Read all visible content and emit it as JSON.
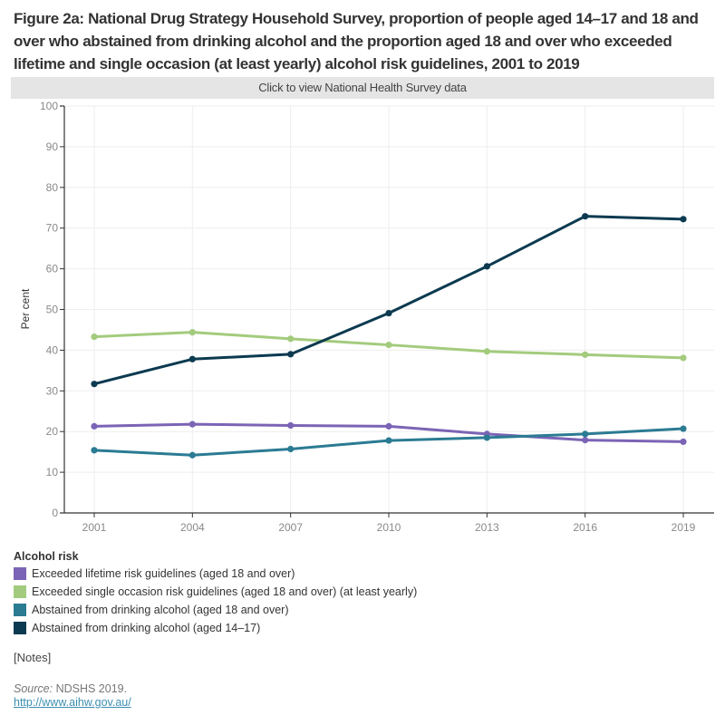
{
  "header": {
    "title": "Figure 2a: National Drug Strategy Household Survey, proportion of people aged 14–17 and 18 and over who abstained from drinking alcohol and the proportion aged 18 and over who exceeded lifetime and single occasion (at least yearly) alcohol risk guidelines, 2001 to 2019",
    "nhs_button_label": "Click to view National Health Survey data"
  },
  "chart_data": {
    "type": "line",
    "title": "",
    "xlabel": "",
    "ylabel": "Per cent",
    "x": [
      "2001",
      "2004",
      "2007",
      "2010",
      "2013",
      "2016",
      "2019"
    ],
    "ylim": [
      0,
      100
    ],
    "yticks": [
      "0",
      "10",
      "20",
      "30",
      "40",
      "50",
      "60",
      "70",
      "80",
      "90",
      "100"
    ],
    "grid": true,
    "legend_position": "bottom-left",
    "legend_title": "Alcohol risk",
    "series": [
      {
        "name": "Exceeded lifetime risk guidelines (aged 18 and over)",
        "color": "#7b64b5",
        "values": [
          21.3,
          21.8,
          21.5,
          21.3,
          19.4,
          17.9,
          17.5
        ]
      },
      {
        "name": "Exceeded single occasion risk guidelines (aged 18 and over) (at least yearly)",
        "color": "#a3cb7d",
        "values": [
          43.3,
          44.4,
          42.8,
          41.3,
          39.7,
          38.9,
          38.1
        ]
      },
      {
        "name": "Abstained from drinking alcohol (aged 18 and over)",
        "color": "#2b7b93",
        "values": [
          15.4,
          14.2,
          15.7,
          17.8,
          18.5,
          19.4,
          20.7
        ]
      },
      {
        "name": "Abstained from drinking alcohol (aged 14–17)",
        "color": "#0c3a50",
        "values": [
          31.7,
          37.8,
          39.0,
          49.1,
          60.6,
          72.9,
          72.2
        ]
      }
    ]
  },
  "footer": {
    "notes_label": "[Notes]",
    "source_label": "Source:",
    "source_text": " NDSHS 2019.",
    "link_text": "http://www.aihw.gov.au/"
  }
}
